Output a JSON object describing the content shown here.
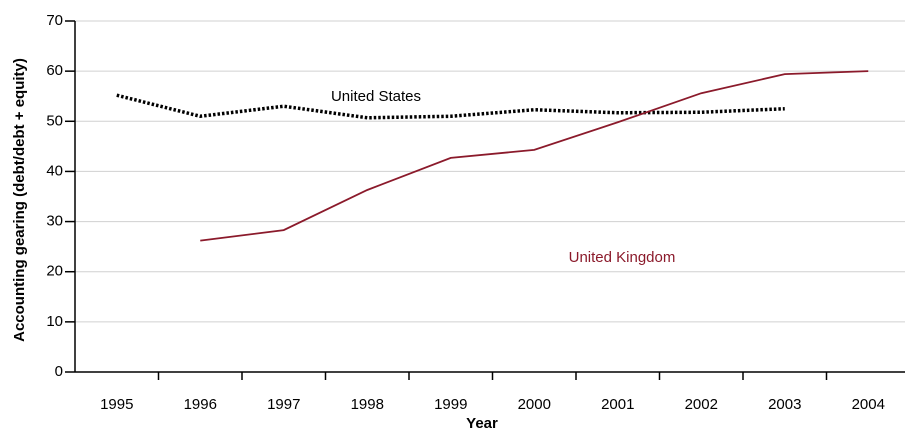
{
  "chart_data": {
    "type": "line",
    "x_label": "Year",
    "y_label": "Accounting gearing (debt/debt + equity)",
    "categories": [
      "1995",
      "1996",
      "1997",
      "1998",
      "1999",
      "2000",
      "2001",
      "2002",
      "2003",
      "2004"
    ],
    "series": [
      {
        "name": "United States",
        "color": "#000000",
        "dashed": true,
        "values": [
          55.2,
          51,
          53,
          50.7,
          51,
          52.3,
          51.7,
          51.8,
          52.5,
          null
        ]
      },
      {
        "name": "United Kingdom",
        "color": "#8b1a2b",
        "dashed": false,
        "values": [
          null,
          26.2,
          28.3,
          36.3,
          42.7,
          44.3,
          49.8,
          55.6,
          59.4,
          60
        ]
      }
    ],
    "ylim": [
      0,
      70
    ],
    "yticks": [
      0,
      10,
      20,
      30,
      40,
      50,
      60,
      70
    ],
    "grid": true
  }
}
